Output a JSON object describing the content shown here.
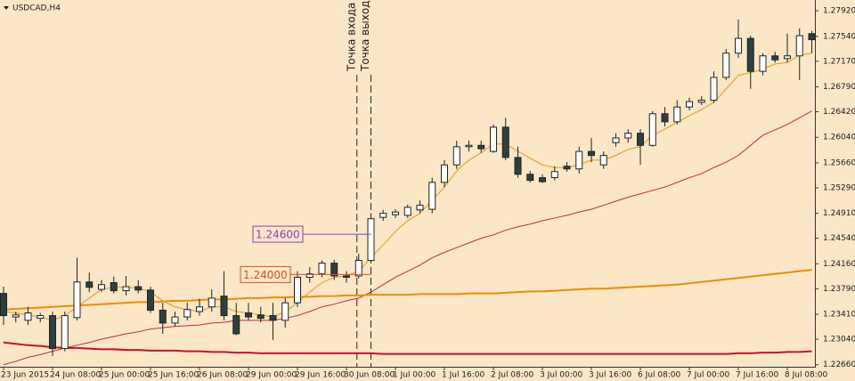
{
  "chart_data": {
    "type": "candlestick",
    "title": "USDCAD,H4",
    "annotations": [
      "Точка входа",
      "Точка выхода"
    ],
    "categories": [
      "23 Jun 2015",
      null,
      null,
      null,
      "24 Jun 08:00",
      null,
      null,
      null,
      "25 Jun 00:00",
      null,
      null,
      null,
      "25 Jun 16:00",
      null,
      null,
      null,
      "26 Jun 08:00",
      null,
      null,
      null,
      "29 Jun 00:00",
      null,
      null,
      null,
      "29 Jun 16:00",
      null,
      null,
      null,
      "30 Jun 08:00",
      null,
      null,
      null,
      "1 Jul 00:00",
      null,
      null,
      null,
      "1 Jul 16:00",
      null,
      null,
      null,
      "2 Jul 08:00",
      null,
      null,
      null,
      "3 Jul 00:00",
      null,
      null,
      null,
      "3 Jul 16:00",
      null,
      null,
      null,
      "6 Jul 08:00",
      null,
      null,
      null,
      "7 Jul 00:00",
      null,
      null,
      null,
      "7 Jul 16:00",
      null,
      null,
      null,
      "8 Jul 08:00",
      null,
      null
    ],
    "open": [
      1.2372,
      1.2337,
      1.2332,
      1.2335,
      1.2339,
      1.229,
      1.2336,
      1.2389,
      1.2378,
      1.2388,
      1.2376,
      1.2382,
      1.2377,
      1.2347,
      1.2328,
      1.2337,
      1.2345,
      1.2352,
      1.2368,
      1.2339,
      1.2343,
      1.234,
      1.2339,
      1.2332,
      1.2358,
      1.2396,
      1.2401,
      1.2417,
      1.2398,
      1.2398,
      1.2421,
      1.2485,
      1.2489,
      1.2488,
      1.2496,
      1.2497,
      1.2537,
      1.2563,
      1.259,
      1.2592,
      1.2583,
      1.2619,
      1.2574,
      1.2549,
      1.2544,
      1.2544,
      1.2561,
      1.2557,
      1.2583,
      1.2563,
      1.2596,
      1.2603,
      1.261,
      1.2592,
      1.2639,
      1.2627,
      1.2649,
      1.2656,
      1.2659,
      1.2693,
      1.2729,
      1.2751,
      1.2702,
      1.2725,
      1.2721,
      1.2725,
      1.2758
    ],
    "high": [
      1.2382,
      1.2345,
      1.2352,
      1.2343,
      1.2345,
      1.2345,
      1.2425,
      1.2403,
      1.2392,
      1.2397,
      1.2398,
      1.2392,
      1.2382,
      1.2358,
      1.2345,
      1.2358,
      1.2364,
      1.2378,
      1.2405,
      1.2358,
      1.2358,
      1.2352,
      1.2358,
      1.2365,
      1.2405,
      1.2411,
      1.2421,
      1.2422,
      1.2405,
      1.2431,
      1.2491,
      1.2496,
      1.2497,
      1.2504,
      1.251,
      1.2544,
      1.257,
      1.2599,
      1.2599,
      1.2599,
      1.2623,
      1.2633,
      1.259,
      1.2554,
      1.2549,
      1.2561,
      1.2567,
      1.259,
      1.2603,
      1.2583,
      1.261,
      1.2616,
      1.2616,
      1.2643,
      1.2649,
      1.2659,
      1.2663,
      1.2665,
      1.2702,
      1.2735,
      1.2779,
      1.2755,
      1.2729,
      1.2731,
      1.2758,
      1.2766,
      1.2762
    ],
    "low": [
      1.2325,
      1.2329,
      1.2325,
      1.2329,
      1.2279,
      1.2286,
      1.2332,
      1.2374,
      1.2374,
      1.2372,
      1.2369,
      1.2372,
      1.2343,
      1.2312,
      1.2323,
      1.2332,
      1.2339,
      1.2345,
      1.2332,
      1.231,
      1.2332,
      1.2329,
      1.2303,
      1.2321,
      1.2352,
      1.2388,
      1.2396,
      1.2392,
      1.2388,
      1.2394,
      1.2417,
      1.248,
      1.2484,
      1.2484,
      1.2491,
      1.2491,
      1.253,
      1.2557,
      1.2583,
      1.2581,
      1.2581,
      1.257,
      1.2544,
      1.2537,
      1.2536,
      1.254,
      1.2553,
      1.255,
      1.2567,
      1.2557,
      1.259,
      1.2596,
      1.2563,
      1.259,
      1.262,
      1.2623,
      1.2644,
      1.2652,
      1.2655,
      1.2689,
      1.2722,
      1.2676,
      1.2696,
      1.2715,
      1.2715,
      1.2689,
      1.2729
    ],
    "close": [
      1.2339,
      1.234,
      1.2343,
      1.2339,
      1.229,
      1.2339,
      1.2389,
      1.2381,
      1.2385,
      1.2376,
      1.2382,
      1.2377,
      1.2347,
      1.2328,
      1.2337,
      1.2348,
      1.2352,
      1.2365,
      1.2339,
      1.2312,
      1.2337,
      1.2335,
      1.2332,
      1.2358,
      1.2396,
      1.2401,
      1.2417,
      1.2398,
      1.2396,
      1.2421,
      1.2483,
      1.2491,
      1.2493,
      1.25,
      1.2503,
      1.2537,
      1.2563,
      1.259,
      1.2592,
      1.2587,
      1.2619,
      1.2574,
      1.2549,
      1.254,
      1.2538,
      1.2553,
      1.2557,
      1.2583,
      1.2577,
      1.2577,
      1.2603,
      1.261,
      1.2592,
      1.2639,
      1.2627,
      1.2649,
      1.2657,
      1.2659,
      1.2693,
      1.2729,
      1.2751,
      1.2702,
      1.2725,
      1.2719,
      1.2725,
      1.2755,
      1.2749
    ],
    "up_color": "#ffffff",
    "down_color": "#2f3f3f",
    "edge_color": "#1a2424",
    "lines": [
      {
        "color": "#f0960f",
        "width": 1,
        "values": [
          1.2345,
          1.2343,
          1.234,
          1.2337,
          1.2332,
          1.2339,
          1.2352,
          1.2365,
          1.2378,
          1.2381,
          1.2381,
          1.238,
          1.2374,
          1.2361,
          1.2352,
          1.2348,
          1.2345,
          1.2352,
          1.2352,
          1.2345,
          1.2343,
          1.234,
          1.2337,
          1.2345,
          1.2358,
          1.2374,
          1.2388,
          1.2396,
          1.2398,
          1.2405,
          1.2425,
          1.2444,
          1.2464,
          1.248,
          1.2491,
          1.251,
          1.253,
          1.2554,
          1.257,
          1.2581,
          1.2594,
          1.2594,
          1.2583,
          1.2573,
          1.2563,
          1.2559,
          1.2559,
          1.2563,
          1.257,
          1.257,
          1.2577,
          1.2586,
          1.259,
          1.2607,
          1.2616,
          1.2626,
          1.2636,
          1.2645,
          1.2656,
          1.2676,
          1.2696,
          1.27,
          1.2705,
          1.2713,
          1.2715,
          1.2726,
          1.2729
        ]
      },
      {
        "color": "#c8283c",
        "width": 1,
        "values": [
          1.2266,
          1.2271,
          1.2277,
          1.2281,
          1.2286,
          1.2291,
          1.2295,
          1.2299,
          1.2304,
          1.2308,
          1.2312,
          1.2315,
          1.2319,
          1.2321,
          1.2323,
          1.2324,
          1.2325,
          1.2328,
          1.2329,
          1.2332,
          1.2332,
          1.2332,
          1.2332,
          1.2335,
          1.2339,
          1.2345,
          1.2352,
          1.2356,
          1.2361,
          1.2365,
          1.2374,
          1.2385,
          1.2396,
          1.2405,
          1.2414,
          1.2425,
          1.2433,
          1.244,
          1.2447,
          1.2454,
          1.2459,
          1.2466,
          1.2471,
          1.2475,
          1.248,
          1.2484,
          1.2488,
          1.2493,
          1.2497,
          1.2503,
          1.2509,
          1.2515,
          1.252,
          1.2525,
          1.253,
          1.2537,
          1.2544,
          1.255,
          1.2559,
          1.2567,
          1.2577,
          1.2592,
          1.2607,
          1.2615,
          1.2623,
          1.2633,
          1.2643
        ]
      },
      {
        "color": "#f08c00",
        "width": 2,
        "values": [
          1.2348,
          1.2349,
          1.235,
          1.2351,
          1.2352,
          1.2353,
          1.2354,
          1.2355,
          1.2356,
          1.2357,
          1.2358,
          1.2359,
          1.2359,
          1.236,
          1.2361,
          1.2361,
          1.2362,
          1.2363,
          1.2363,
          1.2364,
          1.2365,
          1.2365,
          1.2366,
          1.2366,
          1.2367,
          1.2367,
          1.2368,
          1.2368,
          1.2369,
          1.2369,
          1.237,
          1.237,
          1.237,
          1.237,
          1.2371,
          1.2371,
          1.2371,
          1.2371,
          1.2372,
          1.2372,
          1.2372,
          1.2373,
          1.2374,
          1.2375,
          1.2375,
          1.2376,
          1.2377,
          1.2378,
          1.2379,
          1.2379,
          1.238,
          1.2381,
          1.2382,
          1.2383,
          1.2384,
          1.2385,
          1.2387,
          1.2389,
          1.2391,
          1.2393,
          1.2395,
          1.2397,
          1.2399,
          1.2401,
          1.2403,
          1.2405,
          1.2407
        ]
      },
      {
        "color": "#c8102e",
        "width": 2,
        "values": [
          1.2299,
          1.2297,
          1.2295,
          1.2294,
          1.2292,
          1.2291,
          1.2291,
          1.229,
          1.2289,
          1.2289,
          1.2288,
          1.2288,
          1.2287,
          1.2287,
          1.2287,
          1.2286,
          1.2286,
          1.2285,
          1.2285,
          1.2284,
          1.2284,
          1.2283,
          1.2283,
          1.2283,
          1.2283,
          1.2283,
          1.2283,
          1.2283,
          1.2283,
          1.2283,
          1.2283,
          1.2282,
          1.2282,
          1.2282,
          1.2282,
          1.2282,
          1.2282,
          1.2282,
          1.2282,
          1.2282,
          1.2282,
          1.2282,
          1.2282,
          1.2282,
          1.2282,
          1.2282,
          1.2282,
          1.2282,
          1.2282,
          1.2282,
          1.2282,
          1.2282,
          1.2282,
          1.2282,
          1.2282,
          1.2282,
          1.2282,
          1.2282,
          1.2282,
          1.2282,
          1.2283,
          1.2283,
          1.2284,
          1.2284,
          1.2285,
          1.2285,
          1.2286
        ]
      }
    ],
    "price_labels": [
      {
        "value": 1.246,
        "label": "1.24600",
        "color": "#8a3fc4"
      },
      {
        "value": 1.24,
        "label": "1.24000",
        "color": "#e0501a"
      }
    ],
    "ylim": [
      1.2263,
      1.2808
    ],
    "yticks": [
      {
        "value": 1.2792,
        "label": "1.27920"
      },
      {
        "value": 1.2754,
        "label": "1.27540"
      },
      {
        "value": 1.2717,
        "label": "1.27170"
      },
      {
        "value": 1.2679,
        "label": "1.26790"
      },
      {
        "value": 1.2642,
        "label": "1.26420"
      },
      {
        "value": 1.2604,
        "label": "1.26040"
      },
      {
        "value": 1.2566,
        "label": "1.25660"
      },
      {
        "value": 1.2529,
        "label": "1.25290"
      },
      {
        "value": 1.2491,
        "label": "1.24910"
      },
      {
        "value": 1.2454,
        "label": "1.24540"
      },
      {
        "value": 1.2416,
        "label": "1.24160"
      },
      {
        "value": 1.2379,
        "label": "1.23790"
      },
      {
        "value": 1.2341,
        "label": "1.23410"
      },
      {
        "value": 1.2304,
        "label": "1.23040"
      },
      {
        "value": 1.2266,
        "label": "1.22660"
      }
    ],
    "grid": false
  }
}
